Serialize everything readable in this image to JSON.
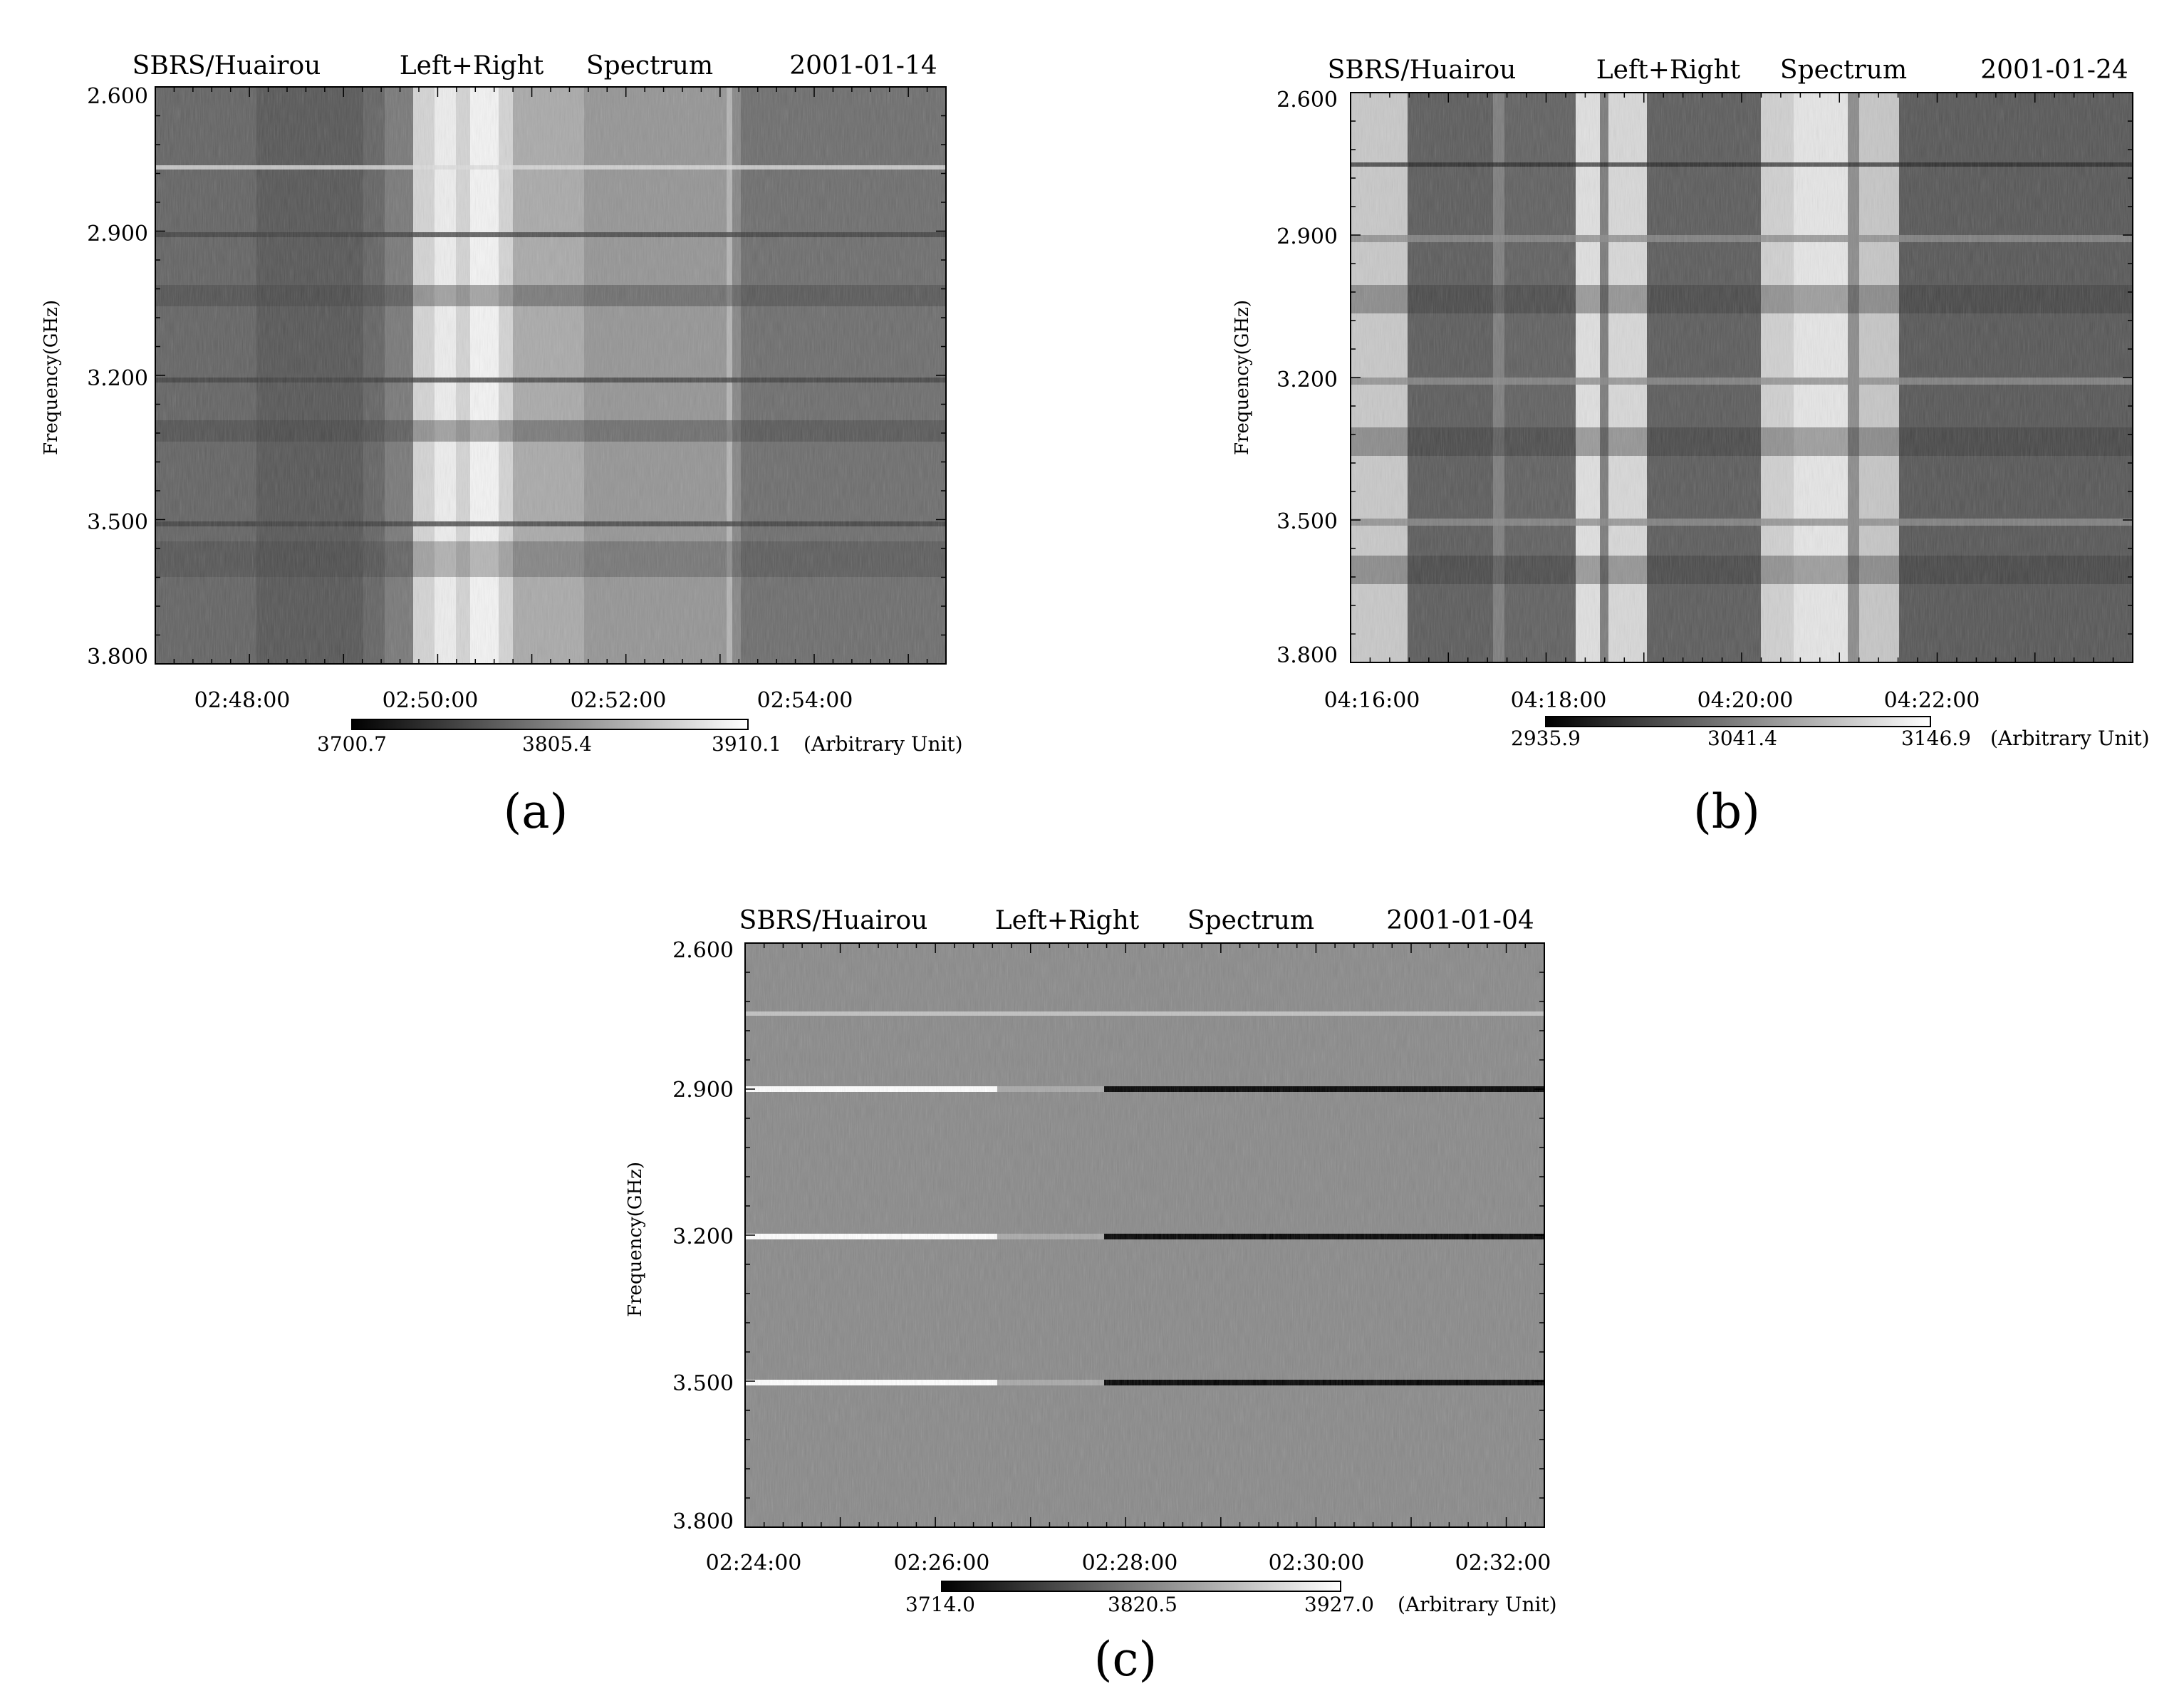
{
  "chart_data": [
    {
      "type": "heatmap",
      "panel_label": "(a)",
      "header": [
        "SBRS/Huairou",
        "Left+Right",
        "Spectrum",
        "2001-01-14"
      ],
      "ylabel": "Frequency(GHz)",
      "yticks": [
        "2.600",
        "2.900",
        "3.200",
        "3.500",
        "3.800"
      ],
      "xticks": [
        "02:48:00",
        "02:50:00",
        "02:52:00",
        "02:54:00"
      ],
      "colorbar_ticks": [
        "3700.7",
        "3805.4",
        "3910.1"
      ],
      "colorbar_unit": "(Arbitrary Unit)"
    },
    {
      "type": "heatmap",
      "panel_label": "(b)",
      "header": [
        "SBRS/Huairou",
        "Left+Right",
        "Spectrum",
        "2001-01-24"
      ],
      "ylabel": "Frequency(GHz)",
      "yticks": [
        "2.600",
        "2.900",
        "3.200",
        "3.500",
        "3.800"
      ],
      "xticks": [
        "04:16:00",
        "04:18:00",
        "04:20:00",
        "04:22:00"
      ],
      "colorbar_ticks": [
        "2935.9",
        "3041.4",
        "3146.9"
      ],
      "colorbar_unit": "(Arbitrary Unit)"
    },
    {
      "type": "heatmap",
      "panel_label": "(c)",
      "header": [
        "SBRS/Huairou",
        "Left+Right",
        "Spectrum",
        "2001-01-04"
      ],
      "ylabel": "Frequency(GHz)",
      "yticks": [
        "2.600",
        "2.900",
        "3.200",
        "3.500",
        "3.800"
      ],
      "xticks": [
        "02:24:00",
        "02:26:00",
        "02:28:00",
        "02:30:00",
        "02:32:00"
      ],
      "colorbar_ticks": [
        "3714.0",
        "3820.5",
        "3927.0"
      ],
      "colorbar_unit": "(Arbitrary Unit)"
    }
  ]
}
